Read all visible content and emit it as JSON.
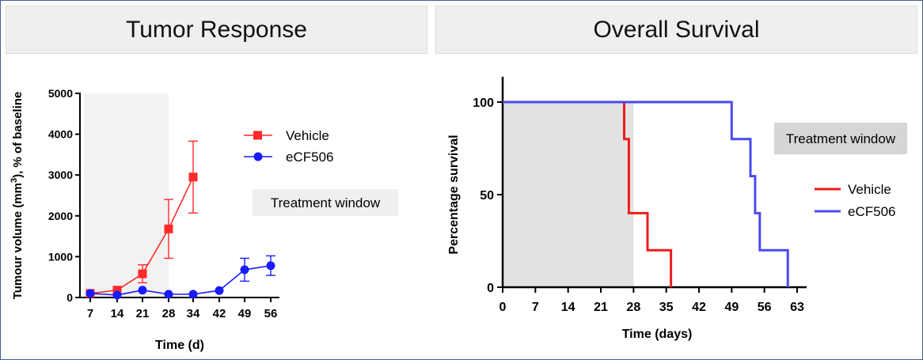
{
  "panels": {
    "left_title": "Tumor Response",
    "right_title": "Overall Survival"
  },
  "chart_data": [
    {
      "type": "line",
      "title": "Tumor Response",
      "xlabel": "Time (d)",
      "ylabel_main": "Tumour volume (mm",
      "ylabel_sup": "3",
      "ylabel_tail": "), % of baseline",
      "x": [
        7,
        14,
        21,
        28,
        34,
        42,
        49,
        56
      ],
      "x_ticks": [
        7,
        14,
        21,
        28,
        34,
        42,
        49,
        56
      ],
      "y_ticks": [
        0,
        1000,
        2000,
        3000,
        4000,
        5000
      ],
      "ylim": [
        0,
        5000
      ],
      "shaded_x_range": [
        7,
        28
      ],
      "annotation": "Treatment window",
      "legend_position": "right",
      "series": [
        {
          "name": "Vehicle",
          "color": "#ff2a2a",
          "marker": "square",
          "x": [
            7,
            14,
            21,
            28,
            34
          ],
          "values": [
            100,
            180,
            580,
            1680,
            2950
          ],
          "error": [
            0,
            0,
            220,
            720,
            880
          ]
        },
        {
          "name": "eCF506",
          "color": "#1a1aff",
          "marker": "circle",
          "x": [
            7,
            14,
            21,
            28,
            34,
            42,
            49,
            56
          ],
          "values": [
            100,
            60,
            180,
            80,
            80,
            170,
            680,
            780
          ],
          "error": [
            0,
            0,
            0,
            0,
            0,
            0,
            280,
            240
          ]
        }
      ]
    },
    {
      "type": "line",
      "title": "Overall Survival",
      "xlabel": "Time (days)",
      "ylabel": "Percentage survival",
      "x_ticks": [
        0,
        7,
        14,
        21,
        28,
        35,
        42,
        49,
        56,
        63
      ],
      "y_ticks": [
        0,
        50,
        100
      ],
      "xlim": [
        0,
        63
      ],
      "ylim": [
        0,
        100
      ],
      "shaded_x_range": [
        0,
        28
      ],
      "annotation": "Treatment window",
      "legend_position": "right",
      "series": [
        {
          "name": "Vehicle",
          "color": "#ee1c1c",
          "steps": [
            [
              0,
              100
            ],
            [
              26,
              100
            ],
            [
              26,
              80
            ],
            [
              27,
              80
            ],
            [
              27,
              40
            ],
            [
              31,
              40
            ],
            [
              31,
              20
            ],
            [
              36,
              20
            ],
            [
              36,
              0
            ]
          ]
        },
        {
          "name": "eCF506",
          "color": "#4a4aef",
          "steps": [
            [
              0,
              100
            ],
            [
              49,
              100
            ],
            [
              49,
              80
            ],
            [
              53,
              80
            ],
            [
              53,
              60
            ],
            [
              54,
              60
            ],
            [
              54,
              40
            ],
            [
              55,
              40
            ],
            [
              55,
              20
            ],
            [
              61,
              20
            ],
            [
              61,
              0
            ]
          ]
        }
      ]
    }
  ]
}
